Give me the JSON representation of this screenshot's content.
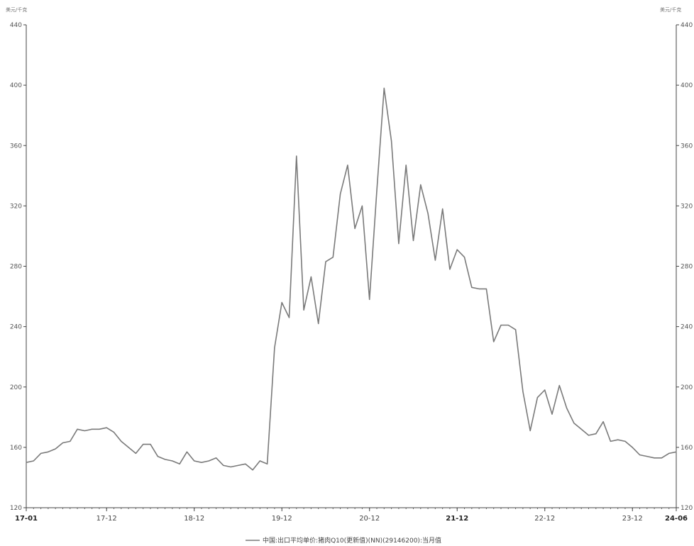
{
  "chart_data": {
    "type": "line",
    "title": "",
    "y_unit_left": "美元/千克",
    "y_unit_right": "美元/千克",
    "ylim": [
      120,
      440
    ],
    "y_ticks": [
      120,
      160,
      200,
      240,
      280,
      320,
      360,
      400,
      440
    ],
    "x_tick_labels": [
      {
        "label": "17-01",
        "month_index": 0,
        "bold": true
      },
      {
        "label": "17-12",
        "month_index": 11,
        "bold": false
      },
      {
        "label": "18-12",
        "month_index": 23,
        "bold": false
      },
      {
        "label": "19-12",
        "month_index": 35,
        "bold": false
      },
      {
        "label": "20-12",
        "month_index": 47,
        "bold": false
      },
      {
        "label": "21-12",
        "month_index": 59,
        "bold": true
      },
      {
        "label": "22-12",
        "month_index": 71,
        "bold": false
      },
      {
        "label": "23-12",
        "month_index": 83,
        "bold": false
      },
      {
        "label": "24-06",
        "month_index": 89,
        "bold": true
      }
    ],
    "grid": false,
    "legend_position": "bottom-center",
    "series": [
      {
        "name": "中国:出口平均单价:猪肉Q10(更新值)(NN)(29146200):当月值",
        "color": "#7a7a7a",
        "x_start": "2017-01",
        "x_end": "2024-06",
        "values": [
          150,
          151,
          156,
          157,
          159,
          163,
          164,
          172,
          171,
          172,
          172,
          173,
          170,
          164,
          160,
          156,
          162,
          162,
          154,
          152,
          151,
          149,
          157,
          151,
          150,
          151,
          153,
          148,
          147,
          148,
          149,
          145,
          151,
          149,
          226,
          256,
          246,
          353,
          251,
          273,
          242,
          283,
          286,
          328,
          347,
          305,
          320,
          258,
          330,
          398,
          363,
          295,
          347,
          297,
          334,
          315,
          284,
          318,
          278,
          291,
          286,
          266,
          265,
          265,
          230,
          241,
          241,
          238,
          197,
          171,
          193,
          198,
          182,
          201,
          186,
          176,
          172,
          168,
          169,
          177,
          164,
          165,
          164,
          160,
          155,
          154,
          153,
          153,
          156,
          157
        ]
      }
    ]
  },
  "legend": {
    "items": [
      {
        "label": "中国:出口平均单价:猪肉Q10(更新值)(NN)(29146200):当月值",
        "color": "#7a7a7a"
      }
    ]
  }
}
